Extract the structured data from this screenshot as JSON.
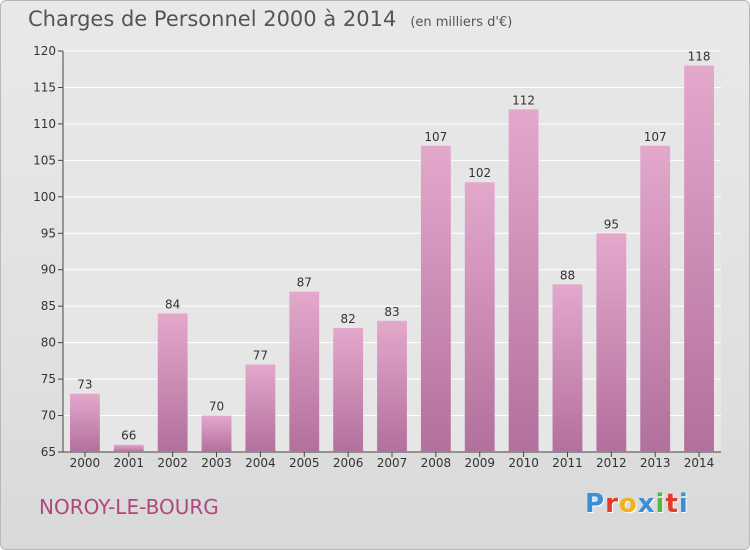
{
  "title": "Charges de Personnel 2000 à 2014",
  "subtitle": "(en milliers d'€)",
  "place": "NOROY-LE-BOURG",
  "logo": {
    "letters": [
      "P",
      "r",
      "o",
      "x",
      "i",
      "t",
      "i"
    ],
    "colors": [
      "#3a8fd6",
      "#e23b2a",
      "#f2b21c",
      "#3a8fd6",
      "#58b34a",
      "#e23b2a",
      "#3a8fd6"
    ]
  },
  "colors": {
    "bar_top": "#e4a8cc",
    "bar_bottom": "#b2709c",
    "place": "#b0477f"
  },
  "chart_data": {
    "type": "bar",
    "categories": [
      "2000",
      "2001",
      "2002",
      "2003",
      "2004",
      "2005",
      "2006",
      "2007",
      "2008",
      "2009",
      "2010",
      "2011",
      "2012",
      "2013",
      "2014"
    ],
    "values": [
      73,
      66,
      84,
      70,
      77,
      87,
      82,
      83,
      107,
      102,
      112,
      88,
      95,
      107,
      118
    ],
    "ylim": [
      65,
      120
    ],
    "yticks": [
      65,
      70,
      75,
      80,
      85,
      90,
      95,
      100,
      105,
      110,
      115,
      120
    ],
    "grid": true,
    "xlabel": "",
    "ylabel": ""
  }
}
